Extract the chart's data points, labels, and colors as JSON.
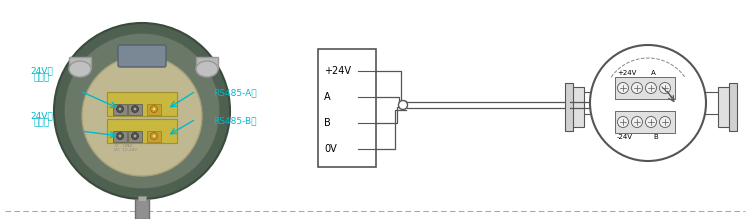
{
  "bg_color": "#ffffff",
  "line_color": "#555555",
  "cyan_color": "#00b8cc",
  "dark_green": "#4a6048",
  "medium_green": "#566856",
  "light_green": "#7a8c78",
  "cream": "#c8ba7a",
  "gray_conn": "#b0b0b0",
  "gray_dark": "#888888",
  "terminal_yellow_bg": "#d4c060",
  "terminal_dark_bg": "#383838",
  "box_labels": [
    "+24V",
    "A",
    "B",
    "0V"
  ],
  "sensor_top_labels": [
    "+24V",
    "A"
  ],
  "sensor_bot_labels": [
    "-24V",
    "B"
  ],
  "ann_tl1": "24V电",
  "ann_tl2": "源正极",
  "ann_bl1": "24V电",
  "ann_bl2": "源负极",
  "ann_tr": "RS485-A极",
  "ann_br": "RS485-B极",
  "dashed_color": "#aaaaaa"
}
